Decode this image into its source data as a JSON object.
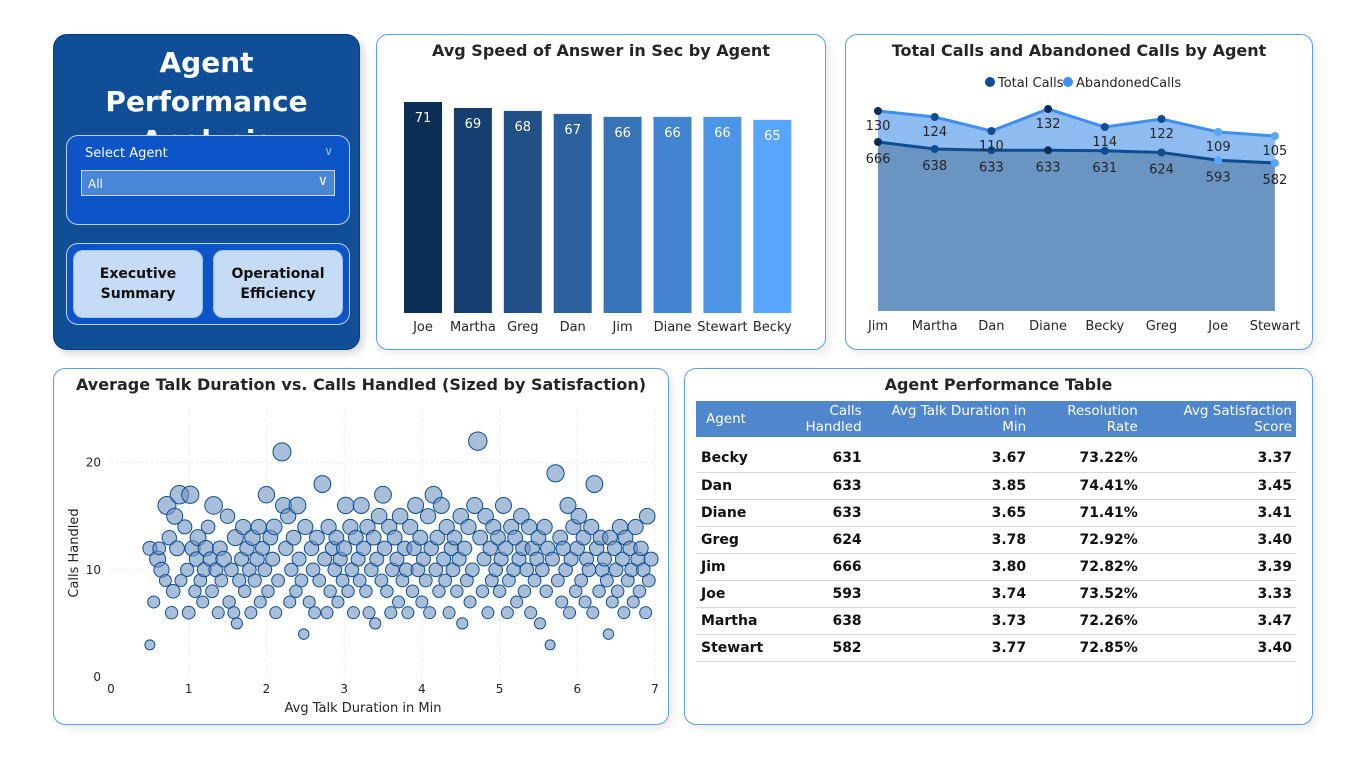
{
  "nav": {
    "title": "Agent Performance Analysis",
    "slicer_label": "Select Agent",
    "slicer_value": "All",
    "buttons": [
      "Executive Summary",
      "Operational Efficiency"
    ]
  },
  "colors": {
    "nav_bg": "#104f97",
    "bar_dark": "#0b2e57",
    "bar_light": "#58a6ff",
    "total_line": "#0e4d92",
    "abandoned_line": "#3f8ef0",
    "area_fill": "#6a95c3",
    "scatter_fill": "#6f95bf"
  },
  "table": {
    "title": "Agent Performance Table",
    "columns": [
      "Agent",
      "Calls Handled",
      "Avg Talk Duration in Min",
      "Resolution Rate",
      "Avg Satisfaction Score"
    ],
    "rows": [
      [
        "Becky",
        "631",
        "3.67",
        "73.22%",
        "3.37"
      ],
      [
        "Dan",
        "633",
        "3.85",
        "74.41%",
        "3.45"
      ],
      [
        "Diane",
        "633",
        "3.65",
        "71.41%",
        "3.41"
      ],
      [
        "Greg",
        "624",
        "3.78",
        "72.92%",
        "3.40"
      ],
      [
        "Jim",
        "666",
        "3.80",
        "72.82%",
        "3.39"
      ],
      [
        "Joe",
        "593",
        "3.74",
        "73.52%",
        "3.33"
      ],
      [
        "Martha",
        "638",
        "3.73",
        "72.26%",
        "3.47"
      ],
      [
        "Stewart",
        "582",
        "3.77",
        "72.85%",
        "3.40"
      ]
    ]
  },
  "chart_data": [
    {
      "type": "bar",
      "title": "Avg Speed of Answer in Sec by Agent",
      "categories": [
        "Joe",
        "Martha",
        "Greg",
        "Dan",
        "Jim",
        "Diane",
        "Stewart",
        "Becky"
      ],
      "values": [
        71,
        69,
        68,
        67,
        66,
        66,
        66,
        65
      ],
      "ylim": [
        0,
        71
      ],
      "grid": false
    },
    {
      "type": "line",
      "title": "Total Calls and Abandoned Calls by Agent",
      "categories": [
        "Jim",
        "Martha",
        "Dan",
        "Diane",
        "Becky",
        "Greg",
        "Joe",
        "Stewart"
      ],
      "series": [
        {
          "name": "Total Calls",
          "values": [
            666,
            638,
            633,
            633,
            631,
            624,
            593,
            582
          ]
        },
        {
          "name": "AbandonedCalls",
          "values": [
            130,
            124,
            110,
            132,
            114,
            122,
            109,
            105
          ]
        }
      ],
      "legend": "top-center",
      "grid": false
    },
    {
      "type": "scatter",
      "title": "Average Talk Duration vs. Calls Handled (Sized by Satisfaction)",
      "xlabel": "Avg Talk Duration in Min",
      "ylabel": "Calls Handled",
      "xlim": [
        0,
        7
      ],
      "ylim": [
        0,
        25
      ],
      "xticks": [
        "0",
        "1",
        "2",
        "3",
        "4",
        "5",
        "6",
        "7"
      ],
      "yticks": [
        "0",
        "10",
        "20"
      ],
      "grid": true,
      "points": [
        [
          0.5,
          3,
          2.5
        ],
        [
          0.5,
          12,
          3.5
        ],
        [
          0.55,
          7,
          3
        ],
        [
          0.6,
          11,
          4
        ],
        [
          0.62,
          12,
          3.2
        ],
        [
          0.65,
          10,
          3.8
        ],
        [
          0.7,
          9,
          3
        ],
        [
          0.72,
          16,
          4.5
        ],
        [
          0.75,
          13,
          3.6
        ],
        [
          0.78,
          6,
          3.1
        ],
        [
          0.8,
          8,
          3.4
        ],
        [
          0.82,
          15,
          4
        ],
        [
          0.85,
          12,
          3.7
        ],
        [
          0.88,
          17,
          4.6
        ],
        [
          0.9,
          9,
          3
        ],
        [
          0.95,
          14,
          3.5
        ],
        [
          0.98,
          10,
          3.3
        ],
        [
          1.0,
          6,
          3.2
        ],
        [
          1.02,
          17,
          4.3
        ],
        [
          1.05,
          12,
          3.8
        ],
        [
          1.08,
          8,
          3.1
        ],
        [
          1.1,
          11,
          3.6
        ],
        [
          1.12,
          13,
          4
        ],
        [
          1.15,
          9,
          3.2
        ],
        [
          1.18,
          7,
          3
        ],
        [
          1.2,
          10,
          3.5
        ],
        [
          1.22,
          12,
          3.9
        ],
        [
          1.25,
          14,
          3.4
        ],
        [
          1.28,
          11,
          3.6
        ],
        [
          1.3,
          8,
          3.2
        ],
        [
          1.32,
          16,
          4.4
        ],
        [
          1.35,
          10,
          3.5
        ],
        [
          1.38,
          6,
          3
        ],
        [
          1.4,
          12,
          3.7
        ],
        [
          1.42,
          9,
          3.2
        ],
        [
          1.45,
          11,
          3.9
        ],
        [
          1.5,
          15,
          3.6
        ],
        [
          1.52,
          7,
          3.1
        ],
        [
          1.55,
          10,
          3.4
        ],
        [
          1.58,
          6,
          3
        ],
        [
          1.6,
          13,
          4
        ],
        [
          1.62,
          5,
          2.8
        ],
        [
          1.65,
          9,
          3.3
        ],
        [
          1.68,
          11,
          3.5
        ],
        [
          1.7,
          14,
          3.8
        ],
        [
          1.72,
          8,
          3.1
        ],
        [
          1.75,
          12,
          3.6
        ],
        [
          1.78,
          10,
          3.4
        ],
        [
          1.8,
          6,
          3
        ],
        [
          1.82,
          13,
          3.9
        ],
        [
          1.85,
          9,
          3.3
        ],
        [
          1.88,
          11,
          3.6
        ],
        [
          1.9,
          14,
          3.8
        ],
        [
          1.92,
          7,
          3
        ],
        [
          1.95,
          12,
          3.5
        ],
        [
          1.98,
          10,
          3.4
        ],
        [
          2.0,
          17,
          4.1
        ],
        [
          2.02,
          8,
          3.1
        ],
        [
          2.05,
          13,
          3.7
        ],
        [
          2.08,
          11,
          3.5
        ],
        [
          2.1,
          14,
          3.9
        ],
        [
          2.12,
          6,
          3
        ],
        [
          2.15,
          9,
          3.2
        ],
        [
          2.2,
          21,
          4.5
        ],
        [
          2.22,
          16,
          4
        ],
        [
          2.25,
          12,
          3.6
        ],
        [
          2.28,
          15,
          3.8
        ],
        [
          2.3,
          7,
          3
        ],
        [
          2.32,
          10,
          3.3
        ],
        [
          2.35,
          13,
          3.7
        ],
        [
          2.38,
          8,
          3.1
        ],
        [
          2.4,
          16,
          4.2
        ],
        [
          2.42,
          11,
          3.5
        ],
        [
          2.45,
          9,
          3.2
        ],
        [
          2.48,
          4,
          2.6
        ],
        [
          2.5,
          14,
          3.8
        ],
        [
          2.55,
          7,
          3
        ],
        [
          2.58,
          12,
          3.6
        ],
        [
          2.6,
          10,
          3.4
        ],
        [
          2.62,
          6,
          3
        ],
        [
          2.65,
          13,
          3.7
        ],
        [
          2.68,
          9,
          3.2
        ],
        [
          2.72,
          18,
          4.2
        ],
        [
          2.75,
          11,
          3.5
        ],
        [
          2.78,
          6,
          3
        ],
        [
          2.8,
          14,
          3.8
        ],
        [
          2.82,
          8,
          3.1
        ],
        [
          2.85,
          12,
          3.6
        ],
        [
          2.88,
          10,
          3.4
        ],
        [
          2.9,
          13,
          3.7
        ],
        [
          2.92,
          7,
          3
        ],
        [
          2.95,
          11,
          3.5
        ],
        [
          2.98,
          9,
          3.2
        ],
        [
          3.0,
          12,
          3.8
        ],
        [
          3.02,
          16,
          4.1
        ],
        [
          3.05,
          8,
          3.1
        ],
        [
          3.08,
          14,
          3.8
        ],
        [
          3.1,
          10,
          3.4
        ],
        [
          3.12,
          6,
          3
        ],
        [
          3.15,
          13,
          3.7
        ],
        [
          3.18,
          11,
          3.5
        ],
        [
          3.2,
          9,
          3.2
        ],
        [
          3.22,
          16,
          4
        ],
        [
          3.25,
          12,
          3.6
        ],
        [
          3.28,
          8,
          3.1
        ],
        [
          3.3,
          14,
          3.8
        ],
        [
          3.32,
          6,
          3
        ],
        [
          3.35,
          10,
          3.4
        ],
        [
          3.38,
          13,
          3.7
        ],
        [
          3.4,
          5,
          2.8
        ],
        [
          3.42,
          11,
          3.5
        ],
        [
          3.45,
          15,
          3.9
        ],
        [
          3.48,
          9,
          3.2
        ],
        [
          3.5,
          17,
          4.2
        ],
        [
          3.52,
          12,
          3.6
        ],
        [
          3.55,
          8,
          3.1
        ],
        [
          3.58,
          14,
          3.8
        ],
        [
          3.6,
          6,
          3
        ],
        [
          3.62,
          10,
          3.4
        ],
        [
          3.65,
          13,
          3.7
        ],
        [
          3.68,
          11,
          3.5
        ],
        [
          3.7,
          7,
          3
        ],
        [
          3.72,
          15,
          3.9
        ],
        [
          3.75,
          9,
          3.2
        ],
        [
          3.78,
          12,
          3.6
        ],
        [
          3.8,
          10,
          3.4
        ],
        [
          3.82,
          6,
          3
        ],
        [
          3.85,
          14,
          3.8
        ],
        [
          3.88,
          8,
          3.1
        ],
        [
          3.9,
          12,
          3.6
        ],
        [
          3.92,
          16,
          4
        ],
        [
          3.95,
          10,
          3.4
        ],
        [
          3.98,
          13,
          3.7
        ],
        [
          4.0,
          7,
          3
        ],
        [
          4.02,
          11,
          3.5
        ],
        [
          4.05,
          9,
          3.2
        ],
        [
          4.08,
          15,
          3.8
        ],
        [
          4.1,
          6,
          3
        ],
        [
          4.12,
          12,
          3.6
        ],
        [
          4.15,
          17,
          4.2
        ],
        [
          4.18,
          10,
          3.4
        ],
        [
          4.2,
          13,
          3.7
        ],
        [
          4.22,
          8,
          3.1
        ],
        [
          4.25,
          16,
          4
        ],
        [
          4.28,
          11,
          3.5
        ],
        [
          4.3,
          9,
          3.2
        ],
        [
          4.32,
          14,
          3.8
        ],
        [
          4.35,
          6,
          3
        ],
        [
          4.38,
          12,
          3.6
        ],
        [
          4.4,
          10,
          3.4
        ],
        [
          4.42,
          13,
          3.7
        ],
        [
          4.45,
          8,
          3.1
        ],
        [
          4.48,
          11,
          3.5
        ],
        [
          4.5,
          15,
          3.9
        ],
        [
          4.52,
          5,
          2.8
        ],
        [
          4.55,
          12,
          3.6
        ],
        [
          4.58,
          9,
          3.2
        ],
        [
          4.6,
          14,
          3.8
        ],
        [
          4.62,
          7,
          3
        ],
        [
          4.65,
          10,
          3.4
        ],
        [
          4.68,
          16,
          4
        ],
        [
          4.72,
          22,
          4.6
        ],
        [
          4.75,
          13,
          3.7
        ],
        [
          4.78,
          8,
          3.1
        ],
        [
          4.8,
          11,
          3.5
        ],
        [
          4.82,
          15,
          3.9
        ],
        [
          4.85,
          6,
          3
        ],
        [
          4.88,
          12,
          3.6
        ],
        [
          4.9,
          9,
          3.2
        ],
        [
          4.92,
          14,
          3.8
        ],
        [
          4.95,
          10,
          3.4
        ],
        [
          4.98,
          13,
          3.7
        ],
        [
          5.0,
          8,
          3.1
        ],
        [
          5.02,
          11,
          3.5
        ],
        [
          5.05,
          16,
          4
        ],
        [
          5.08,
          12,
          3.6
        ],
        [
          5.1,
          6,
          3
        ],
        [
          5.12,
          9,
          3.2
        ],
        [
          5.15,
          14,
          3.8
        ],
        [
          5.18,
          10,
          3.4
        ],
        [
          5.2,
          13,
          3.7
        ],
        [
          5.22,
          7,
          3
        ],
        [
          5.25,
          11,
          3.5
        ],
        [
          5.28,
          15,
          3.9
        ],
        [
          5.3,
          12,
          3.6
        ],
        [
          5.32,
          8,
          3.1
        ],
        [
          5.35,
          10,
          3.4
        ],
        [
          5.38,
          14,
          3.8
        ],
        [
          5.4,
          6,
          3
        ],
        [
          5.42,
          12,
          3.6
        ],
        [
          5.45,
          9,
          3.2
        ],
        [
          5.48,
          11,
          3.5
        ],
        [
          5.5,
          13,
          3.7
        ],
        [
          5.52,
          5,
          2.8
        ],
        [
          5.55,
          10,
          3.4
        ],
        [
          5.58,
          14,
          3.8
        ],
        [
          5.6,
          8,
          3.1
        ],
        [
          5.62,
          12,
          3.6
        ],
        [
          5.65,
          3,
          2.5
        ],
        [
          5.68,
          11,
          3.5
        ],
        [
          5.72,
          19,
          4.3
        ],
        [
          5.75,
          9,
          3.2
        ],
        [
          5.78,
          13,
          3.7
        ],
        [
          5.8,
          7,
          3
        ],
        [
          5.82,
          12,
          3.6
        ],
        [
          5.85,
          10,
          3.4
        ],
        [
          5.88,
          16,
          4
        ],
        [
          5.9,
          6,
          3
        ],
        [
          5.92,
          11,
          3.5
        ],
        [
          5.95,
          14,
          3.8
        ],
        [
          5.98,
          8,
          3.1
        ],
        [
          6.0,
          12,
          3.6
        ],
        [
          6.02,
          15,
          3.9
        ],
        [
          6.05,
          9,
          3.2
        ],
        [
          6.08,
          13,
          3.7
        ],
        [
          6.1,
          7,
          3
        ],
        [
          6.12,
          11,
          3.5
        ],
        [
          6.15,
          10,
          3.4
        ],
        [
          6.18,
          14,
          3.8
        ],
        [
          6.2,
          6,
          3
        ],
        [
          6.22,
          18,
          4.2
        ],
        [
          6.25,
          12,
          3.6
        ],
        [
          6.28,
          8,
          3.1
        ],
        [
          6.3,
          13,
          3.7
        ],
        [
          6.32,
          10,
          3.4
        ],
        [
          6.35,
          11,
          3.5
        ],
        [
          6.38,
          9,
          3.2
        ],
        [
          6.4,
          4,
          2.6
        ],
        [
          6.42,
          13,
          3.7
        ],
        [
          6.45,
          7,
          3
        ],
        [
          6.48,
          12,
          3.6
        ],
        [
          6.5,
          10,
          3.4
        ],
        [
          6.52,
          8,
          3.1
        ],
        [
          6.55,
          14,
          3.8
        ],
        [
          6.58,
          11,
          3.5
        ],
        [
          6.6,
          6,
          3
        ],
        [
          6.62,
          13,
          3.7
        ],
        [
          6.65,
          9,
          3.2
        ],
        [
          6.68,
          12,
          3.6
        ],
        [
          6.7,
          10,
          3.4
        ],
        [
          6.72,
          7,
          3
        ],
        [
          6.75,
          14,
          3.8
        ],
        [
          6.78,
          11,
          3.5
        ],
        [
          6.8,
          8,
          3.1
        ],
        [
          6.82,
          12,
          3.6
        ],
        [
          6.85,
          10,
          3.4
        ],
        [
          6.88,
          6,
          3
        ],
        [
          6.9,
          15,
          3.9
        ],
        [
          6.92,
          9,
          3.2
        ],
        [
          6.95,
          11,
          3.5
        ]
      ]
    }
  ]
}
